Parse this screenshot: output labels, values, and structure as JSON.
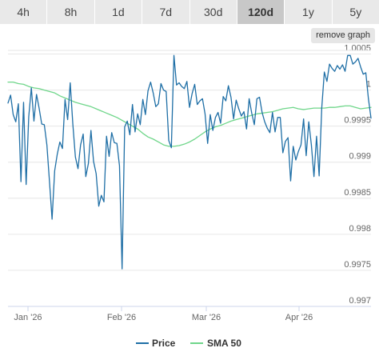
{
  "tabs": [
    {
      "label": "4h",
      "active": false
    },
    {
      "label": "8h",
      "active": false
    },
    {
      "label": "1d",
      "active": false
    },
    {
      "label": "7d",
      "active": false
    },
    {
      "label": "30d",
      "active": false
    },
    {
      "label": "120d",
      "active": true
    },
    {
      "label": "1y",
      "active": false
    },
    {
      "label": "5y",
      "active": false
    }
  ],
  "remove_graph_label": "remove graph",
  "colors": {
    "price": "#1f6fa6",
    "sma": "#6fd68a",
    "grid": "#e6e6e6",
    "axis_line": "#ccd6eb"
  },
  "chart_data": {
    "type": "line",
    "x_ticks": [
      "Jan '26",
      "Feb '26",
      "Mar '26",
      "Apr '26"
    ],
    "y_ticks": [
      "0.997",
      "0.9975",
      "0.998",
      "0.9985",
      "0.999",
      "0.9995",
      "1",
      "1.0005"
    ],
    "ylim": [
      0.997,
      1.00055
    ],
    "legend": "bottom-center",
    "grid": true,
    "series": [
      {
        "name": "Price",
        "values": [
          0.99982,
          0.99993,
          0.99966,
          0.99956,
          0.99981,
          0.99873,
          0.99983,
          0.99869,
          0.99963,
          1.00003,
          0.99957,
          0.99994,
          0.99975,
          0.99953,
          0.99952,
          0.99924,
          0.99873,
          0.99821,
          0.99888,
          0.99911,
          0.99928,
          0.99919,
          0.99987,
          0.99959,
          1.0001,
          0.99953,
          0.99907,
          0.99891,
          0.99924,
          0.99939,
          0.9988,
          0.99898,
          0.99944,
          0.99901,
          0.99884,
          0.99839,
          0.99854,
          0.99845,
          0.99936,
          0.99908,
          0.99941,
          0.99927,
          0.99926,
          0.99895,
          0.99752,
          0.99949,
          0.99957,
          0.99938,
          0.9998,
          0.99942,
          0.99967,
          0.99952,
          0.99987,
          0.99966,
          0.99999,
          1.00011,
          0.99996,
          0.99977,
          0.99981,
          1.00009,
          1.0,
          0.99998,
          0.9993,
          0.9992,
          1.00048,
          1.00007,
          1.0001,
          1.00005,
          1.00002,
          1.00012,
          0.99976,
          0.99995,
          1.00008,
          0.9998,
          0.99985,
          0.99988,
          0.99967,
          0.99926,
          0.99966,
          0.99944,
          0.99962,
          0.99969,
          0.99954,
          0.99991,
          0.99985,
          1.00006,
          0.9999,
          0.9996,
          0.99986,
          0.99974,
          0.99964,
          0.9997,
          0.99946,
          0.99988,
          0.99968,
          0.99952,
          0.99988,
          0.9999,
          0.99969,
          0.99956,
          0.99947,
          0.99941,
          0.99969,
          0.99942,
          0.99962,
          0.99962,
          0.99913,
          0.99929,
          0.99934,
          0.99874,
          0.99922,
          0.99903,
          0.99915,
          0.99924,
          0.9996,
          0.99909,
          0.99956,
          0.99924,
          0.9988,
          0.99936,
          0.99881,
          0.99975,
          1.00025,
          1.00012,
          1.00036,
          1.0003,
          1.00026,
          1.00034,
          1.00029,
          1.00035,
          1.00026,
          1.00048,
          1.00048,
          1.00036,
          1.00039,
          1.00044,
          1.00032,
          1.00022,
          1.00024,
          0.99988,
          0.99961
        ]
      },
      {
        "name": "SMA 50",
        "values": [
          1.00011,
          1.00011,
          1.00009,
          1.00008,
          1.00005,
          1.00003,
          1.00002,
          1.0,
          0.99998,
          0.99996,
          0.99992,
          0.99989,
          0.99986,
          0.99983,
          0.99981,
          0.99979,
          0.99977,
          0.99974,
          0.99971,
          0.99968,
          0.99965,
          0.99962,
          0.99958,
          0.99954,
          0.9995,
          0.99946,
          0.9994,
          0.99935,
          0.99932,
          0.99928,
          0.99924,
          0.99922,
          0.99922,
          0.99923,
          0.99925,
          0.99928,
          0.99932,
          0.99937,
          0.99942,
          0.99946,
          0.99949,
          0.99951,
          0.99954,
          0.99957,
          0.99959,
          0.99961,
          0.99963,
          0.99965,
          0.99967,
          0.99968,
          0.99969,
          0.9997,
          0.99972,
          0.99974,
          0.99975,
          0.99976,
          0.99974,
          0.99973,
          0.99974,
          0.99975,
          0.99975,
          0.99975,
          0.99976,
          0.99976,
          0.99977,
          0.99978,
          0.99978,
          0.99976,
          0.99974,
          0.99975,
          0.99976
        ]
      }
    ]
  }
}
